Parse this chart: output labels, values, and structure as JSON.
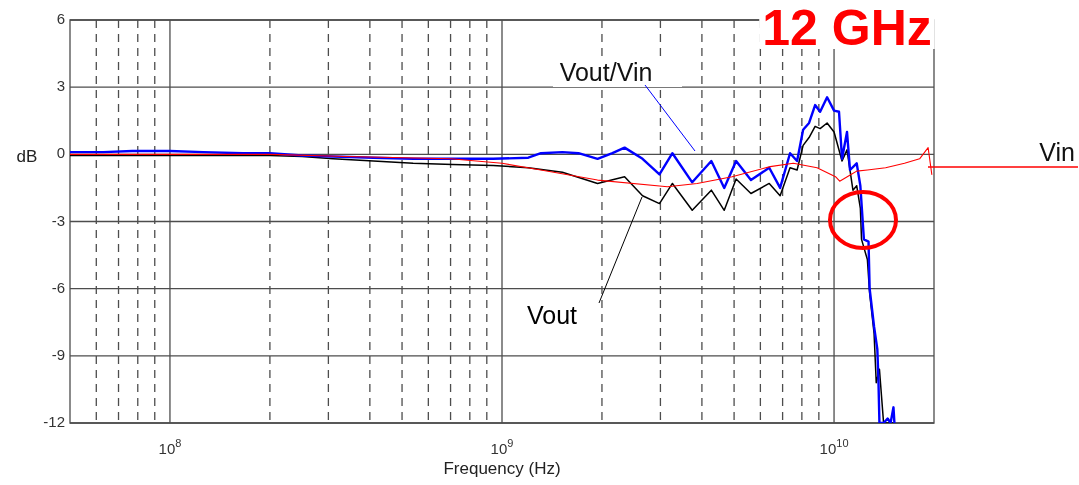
{
  "chart_data": {
    "type": "line",
    "xlabel": "Frequency (Hz)",
    "ylabel": "dB",
    "log": "x",
    "grid": true,
    "xlim": [
      50000000.0,
      20000000000.0
    ],
    "xticks": [
      {
        "value": 60000000.0,
        "label": null
      },
      {
        "value": 70000000.0,
        "label": null
      },
      {
        "value": 80000000.0,
        "label": null
      },
      {
        "value": 90000000.0,
        "label": null
      },
      {
        "value": 100000000.0,
        "label": "10$^{8}$"
      },
      {
        "value": 200000000.0,
        "label": null
      },
      {
        "value": 300000000.0,
        "label": null
      },
      {
        "value": 400000000.0,
        "label": null
      },
      {
        "value": 500000000.0,
        "label": null
      },
      {
        "value": 600000000.0,
        "label": null
      },
      {
        "value": 700000000.0,
        "label": null
      },
      {
        "value": 800000000.0,
        "label": null
      },
      {
        "value": 900000000.0,
        "label": null
      },
      {
        "value": 1000000000.0,
        "label": "10$^{9}$"
      },
      {
        "value": 2000000000.0,
        "label": null
      },
      {
        "value": 3000000000.0,
        "label": null
      },
      {
        "value": 4000000000.0,
        "label": null
      },
      {
        "value": 5000000000.0,
        "label": null
      },
      {
        "value": 6000000000.0,
        "label": null
      },
      {
        "value": 7000000000.0,
        "label": null
      },
      {
        "value": 8000000000.0,
        "label": null
      },
      {
        "value": 9000000000.0,
        "label": null
      },
      {
        "value": 10000000000.0,
        "label": "10$^{10}$"
      }
    ],
    "ylim": [
      -12,
      6
    ],
    "yticks": [
      -12,
      -9,
      -6,
      -3,
      0,
      3,
      6
    ],
    "annotations": [
      "12 GHz"
    ],
    "series": [
      {
        "name": "Vout/Vin",
        "color": "#0000ff",
        "x": [
          50000000.0,
          63000000.0,
          77000000.0,
          100000000.0,
          126000000.0,
          166000000.0,
          200000000.0,
          250000000.0,
          310000000.0,
          410000000.0,
          540000000.0,
          710000000.0,
          940000000.0,
          1200000000.0,
          1310000000.0,
          1520000000.0,
          1700000000.0,
          1940000000.0,
          2150000000.0,
          2340000000.0,
          2650000000.0,
          2980000000.0,
          3260000000.0,
          3740000000.0,
          4270000000.0,
          4670000000.0,
          5070000000.0,
          5620000000.0,
          6380000000.0,
          6880000000.0,
          7370000000.0,
          7740000000.0,
          8070000000.0,
          8410000000.0,
          8770000000.0,
          9080000000.0,
          9530000000.0,
          10000000000.0,
          10350000000.0,
          10570000000.0,
          10940000000.0,
          11170000000.0,
          11700000000.0,
          12000000000.0,
          12300000000.0,
          12700000000.0,
          12800000000.0,
          13200000000.0,
          13500000000.0,
          13600000000.0,
          13700000000.0,
          14100000000.0,
          14500000000.0,
          14800000000.0,
          15100000000.0,
          15200000000.0
        ],
        "values": [
          0.1,
          0.1,
          0.15,
          0.15,
          0.1,
          0.05,
          0.05,
          -0.05,
          -0.1,
          -0.15,
          -0.2,
          -0.2,
          -0.2,
          -0.15,
          0.05,
          0.1,
          0.05,
          -0.2,
          0.05,
          0.3,
          -0.2,
          -0.9,
          0.05,
          -1.25,
          -0.3,
          -1.5,
          -0.3,
          -1.15,
          -0.6,
          -1.5,
          0.05,
          -0.3,
          1.1,
          1.4,
          2.2,
          1.9,
          2.55,
          1.95,
          1.9,
          -0.2,
          1.0,
          -0.7,
          -0.4,
          -1.4,
          -3.8,
          -3.9,
          -6.0,
          -7.7,
          -8.7,
          -10,
          -12,
          -12,
          -11.8,
          -12,
          -11.3,
          -12
        ]
      },
      {
        "name": "Vout",
        "color": "#000000",
        "x": [
          50000000.0,
          100000000.0,
          200000000.0,
          250000000.0,
          310000000.0,
          410000000.0,
          540000000.0,
          710000000.0,
          940000000.0,
          1200000000.0,
          1520000000.0,
          1940000000.0,
          2340000000.0,
          2650000000.0,
          2980000000.0,
          3260000000.0,
          3740000000.0,
          4270000000.0,
          4670000000.0,
          5070000000.0,
          5620000000.0,
          6380000000.0,
          6880000000.0,
          7370000000.0,
          7740000000.0,
          8070000000.0,
          8410000000.0,
          8770000000.0,
          9080000000.0,
          9530000000.0,
          10000000000.0,
          10570000000.0,
          10940000000.0,
          11400000000.0,
          11700000000.0,
          12000000000.0,
          12100000000.0,
          12600000000.0,
          12800000000.0,
          13200000000.0,
          13400000000.0,
          13700000000.0,
          14100000000.0,
          15200000000.0
        ],
        "values": [
          -0.05,
          -0.05,
          -0.05,
          -0.1,
          -0.2,
          -0.3,
          -0.4,
          -0.45,
          -0.5,
          -0.6,
          -0.8,
          -1.3,
          -1.0,
          -1.85,
          -2.2,
          -1.3,
          -2.5,
          -1.6,
          -2.5,
          -1.1,
          -1.75,
          -1.3,
          -1.85,
          -0.6,
          -0.7,
          0.4,
          0.75,
          1.25,
          1.15,
          1.4,
          1.0,
          -0.3,
          0.2,
          -1.6,
          -1.4,
          -2.4,
          -3.8,
          -4.7,
          -6.2,
          -8.0,
          -10.2,
          -9.6,
          -12,
          -12
        ]
      },
      {
        "name": "Vin",
        "color": "#ff0000",
        "x": [
          50000000.0,
          100000000.0,
          200000000.0,
          340000000.0,
          700000000.0,
          1000000000.0,
          1310000000.0,
          1940000000.0,
          3150000000.0,
          3870000000.0,
          4930000000.0,
          6420000000.0,
          7540000000.0,
          8890000000.0,
          10100000000.0,
          10400000000.0,
          11250000000.0,
          11700000000.0,
          12600000000.0,
          14300000000.0,
          16300000000.0,
          18100000000.0,
          19200000000.0,
          19700000000.0
        ],
        "values": [
          0,
          0,
          0,
          -0.1,
          -0.2,
          -0.4,
          -0.7,
          -1.15,
          -1.45,
          -1.3,
          -1.0,
          -0.55,
          -0.4,
          -0.6,
          -1.0,
          -1.2,
          -0.9,
          -0.75,
          -0.7,
          -0.6,
          -0.4,
          -0.2,
          0.3,
          -0.9
        ]
      }
    ]
  }
}
